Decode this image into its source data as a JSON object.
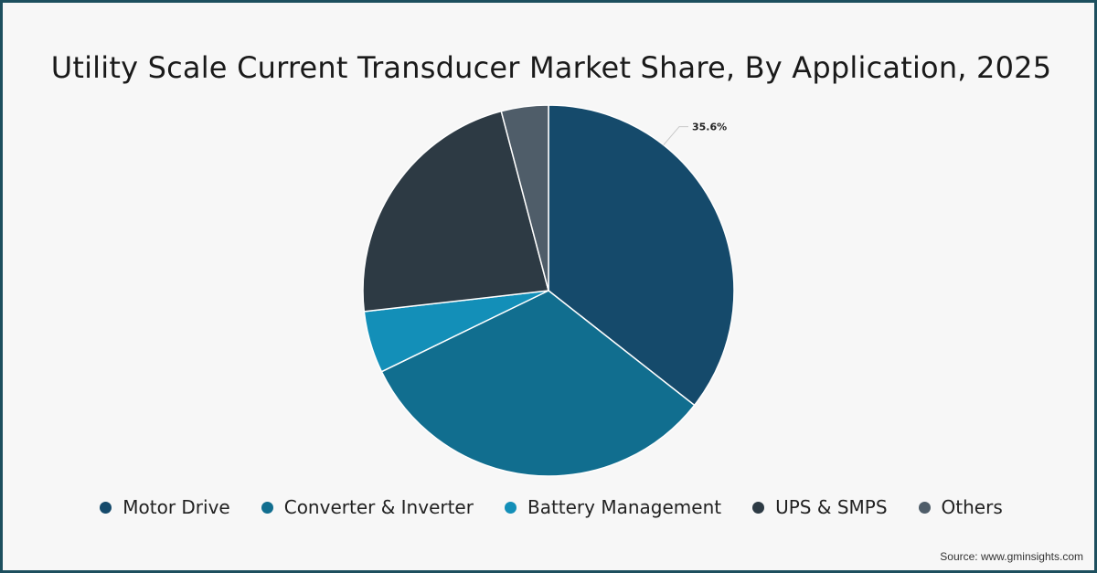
{
  "chart_data": {
    "type": "pie",
    "title": "Utility Scale Current Transducer Market Share, By Application, 2025",
    "categories": [
      "Motor Drive",
      "Converter & Inverter",
      "Battery Management",
      "UPS & SMPS",
      "Others"
    ],
    "values": [
      35.6,
      32.2,
      5.4,
      22.7,
      4.1
    ],
    "colors": [
      "#154a6b",
      "#116e8f",
      "#138fb8",
      "#2d3a44",
      "#4f5d69"
    ],
    "data_labels": [
      "35.6%",
      "",
      "",
      "",
      ""
    ],
    "legend_position": "bottom"
  },
  "source": "Source: www.gminsights.com"
}
